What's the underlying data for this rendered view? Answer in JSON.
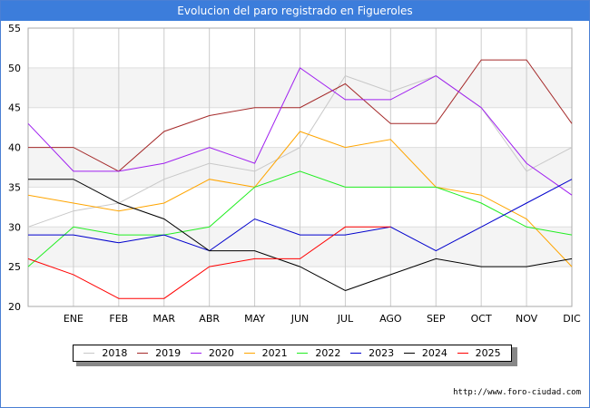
{
  "title": "Evolucion del paro registrado en Figueroles",
  "footer_url": "http://www.foro-ciudad.com",
  "chart_data": {
    "type": "line",
    "title": "Evolucion del paro registrado en Figueroles",
    "xlabel": "",
    "ylabel": "",
    "ylim": [
      20,
      55
    ],
    "y_ticks": [
      20,
      25,
      30,
      35,
      40,
      45,
      50,
      55
    ],
    "categories": [
      "",
      "ENE",
      "FEB",
      "MAR",
      "ABR",
      "MAY",
      "JUN",
      "JUL",
      "AGO",
      "SEP",
      "OCT",
      "NOV",
      "DIC"
    ],
    "grid": true,
    "legend_position": "bottom",
    "series": [
      {
        "name": "2018",
        "color": "#c8c8c8",
        "values": [
          30,
          32,
          33,
          36,
          38,
          37,
          40,
          49,
          47,
          49,
          45,
          37,
          40
        ]
      },
      {
        "name": "2019",
        "color": "#a52a2a",
        "values": [
          40,
          40,
          37,
          42,
          44,
          45,
          45,
          48,
          43,
          43,
          51,
          51,
          43
        ]
      },
      {
        "name": "2020",
        "color": "#a020f0",
        "values": [
          43,
          37,
          37,
          38,
          40,
          38,
          50,
          46,
          46,
          49,
          45,
          38,
          34
        ]
      },
      {
        "name": "2021",
        "color": "#ffa500",
        "values": [
          34,
          33,
          32,
          33,
          36,
          35,
          42,
          40,
          41,
          35,
          34,
          31,
          25
        ]
      },
      {
        "name": "2022",
        "color": "#22ee22",
        "values": [
          25,
          30,
          29,
          29,
          30,
          35,
          37,
          35,
          35,
          35,
          33,
          30,
          29
        ]
      },
      {
        "name": "2023",
        "color": "#0000cd",
        "values": [
          29,
          29,
          28,
          29,
          27,
          31,
          29,
          29,
          30,
          27,
          30,
          33,
          36
        ]
      },
      {
        "name": "2024",
        "color": "#000000",
        "values": [
          36,
          36,
          33,
          31,
          27,
          27,
          25,
          22,
          24,
          26,
          25,
          25,
          26
        ]
      },
      {
        "name": "2025",
        "color": "#ff0000",
        "values": [
          26,
          24,
          21,
          21,
          25,
          26,
          26,
          30,
          30,
          null,
          null,
          null,
          null
        ]
      }
    ]
  }
}
